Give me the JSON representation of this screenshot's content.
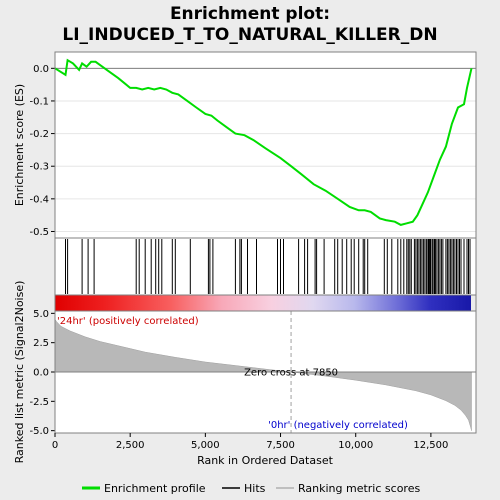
{
  "chart_data": {
    "type": "line",
    "title": "Enrichment plot:",
    "subtitle": "LI_INDUCED_T_TO_NATURAL_KILLER_DN",
    "top_panel": {
      "ylabel": "Enrichment score (ES)",
      "ylim": [
        -0.52,
        0.05
      ],
      "yticks": [
        0.0,
        -0.1,
        -0.2,
        -0.3,
        -0.4,
        -0.5
      ],
      "ytick_labels": [
        "0.0",
        "-0.1",
        "-0.2",
        "-0.3",
        "-0.4",
        "-0.5"
      ],
      "series": [
        {
          "name": "Enrichment profile",
          "color": "#00dd00",
          "x": [
            0,
            350,
            420,
            600,
            800,
            900,
            1050,
            1200,
            1350,
            1500,
            1800,
            2100,
            2500,
            2700,
            2900,
            3100,
            3300,
            3500,
            3700,
            3900,
            4100,
            4400,
            4700,
            5000,
            5200,
            5400,
            5700,
            6000,
            6300,
            6600,
            7000,
            7500,
            7850,
            8200,
            8600,
            9000,
            9400,
            9800,
            10100,
            10300,
            10500,
            10800,
            11000,
            11300,
            11500,
            11700,
            11900,
            12050,
            12200,
            12400,
            12600,
            12800,
            13000,
            13200,
            13400,
            13600,
            13700,
            13800,
            13850
          ],
          "y": [
            0.0,
            -0.02,
            0.025,
            0.015,
            -0.005,
            0.015,
            0.005,
            0.02,
            0.02,
            0.01,
            -0.01,
            -0.03,
            -0.06,
            -0.06,
            -0.065,
            -0.06,
            -0.065,
            -0.06,
            -0.065,
            -0.075,
            -0.08,
            -0.1,
            -0.12,
            -0.14,
            -0.145,
            -0.16,
            -0.18,
            -0.2,
            -0.205,
            -0.22,
            -0.245,
            -0.275,
            -0.3,
            -0.325,
            -0.355,
            -0.375,
            -0.4,
            -0.425,
            -0.435,
            -0.435,
            -0.44,
            -0.46,
            -0.465,
            -0.47,
            -0.48,
            -0.475,
            -0.47,
            -0.45,
            -0.42,
            -0.38,
            -0.33,
            -0.28,
            -0.24,
            -0.17,
            -0.12,
            -0.11,
            -0.06,
            -0.02,
            0.0
          ]
        }
      ]
    },
    "hits": {
      "name": "Hits",
      "color": "#000000",
      "x": [
        350,
        420,
        900,
        1100,
        1300,
        2700,
        2800,
        3000,
        3200,
        3350,
        3450,
        3550,
        3900,
        4000,
        4500,
        5100,
        5150,
        5250,
        6000,
        6150,
        6200,
        6400,
        6700,
        7400,
        7500,
        7600,
        8100,
        8300,
        8400,
        8650,
        8700,
        8950,
        9300,
        9400,
        9550,
        9700,
        9850,
        9950,
        10100,
        10250,
        10300,
        10400,
        10950,
        11050,
        11200,
        11400,
        11500,
        11600,
        11700,
        11750,
        11800,
        11850,
        11950,
        12000,
        12050,
        12100,
        12150,
        12200,
        12250,
        12300,
        12350,
        12400,
        12420,
        12450,
        12480,
        12500,
        12550,
        12600,
        12620,
        12650,
        12700,
        12750,
        12800,
        12850,
        12900,
        13000,
        13050,
        13100,
        13150,
        13200,
        13250,
        13300,
        13350,
        13400,
        13450,
        13500,
        13600,
        13700,
        13750,
        13800
      ]
    },
    "bottom_panel": {
      "xlabel": "Rank in Ordered Dataset",
      "ylabel": "Ranked list metric (Signal2Noise)",
      "xlim": [
        0,
        14000
      ],
      "ylim": [
        -5.2,
        5.2
      ],
      "xticks": [
        0,
        2500,
        5000,
        7500,
        10000,
        12500
      ],
      "xtick_labels": [
        "0",
        "2,500",
        "5,000",
        "7,500",
        "10,000",
        "12,500"
      ],
      "yticks": [
        5.0,
        2.5,
        0.0,
        -2.5,
        -5.0
      ],
      "ytick_labels": [
        "5.0",
        "2.5",
        "0.0",
        "-2.5",
        "-5.0"
      ],
      "metric_x": [
        0,
        50,
        200,
        500,
        1000,
        1500,
        2000,
        3000,
        4000,
        5000,
        6000,
        7000,
        7850,
        9000,
        10000,
        11000,
        12000,
        12500,
        13000,
        13300,
        13500,
        13650,
        13750,
        13820,
        13850
      ],
      "metric_y": [
        4.5,
        4.3,
        3.9,
        3.5,
        3.0,
        2.6,
        2.3,
        1.7,
        1.25,
        0.85,
        0.55,
        0.25,
        0.0,
        -0.35,
        -0.7,
        -1.1,
        -1.6,
        -1.95,
        -2.45,
        -2.85,
        -3.25,
        -3.7,
        -4.1,
        -4.7,
        -5.0
      ],
      "zero_cross_label": "Zero cross at 7850",
      "zero_cross_x": 7850,
      "positive_label": "'24hr' (positively correlated)",
      "negative_label": "'0hr' (negatively correlated)"
    },
    "legend": {
      "placement": "bottom",
      "items": [
        {
          "label": "Enrichment profile",
          "color": "#00dd00"
        },
        {
          "label": "Hits",
          "color": "#000000"
        },
        {
          "label": "Ranking metric scores",
          "color": "#b0b0b0"
        }
      ]
    }
  }
}
